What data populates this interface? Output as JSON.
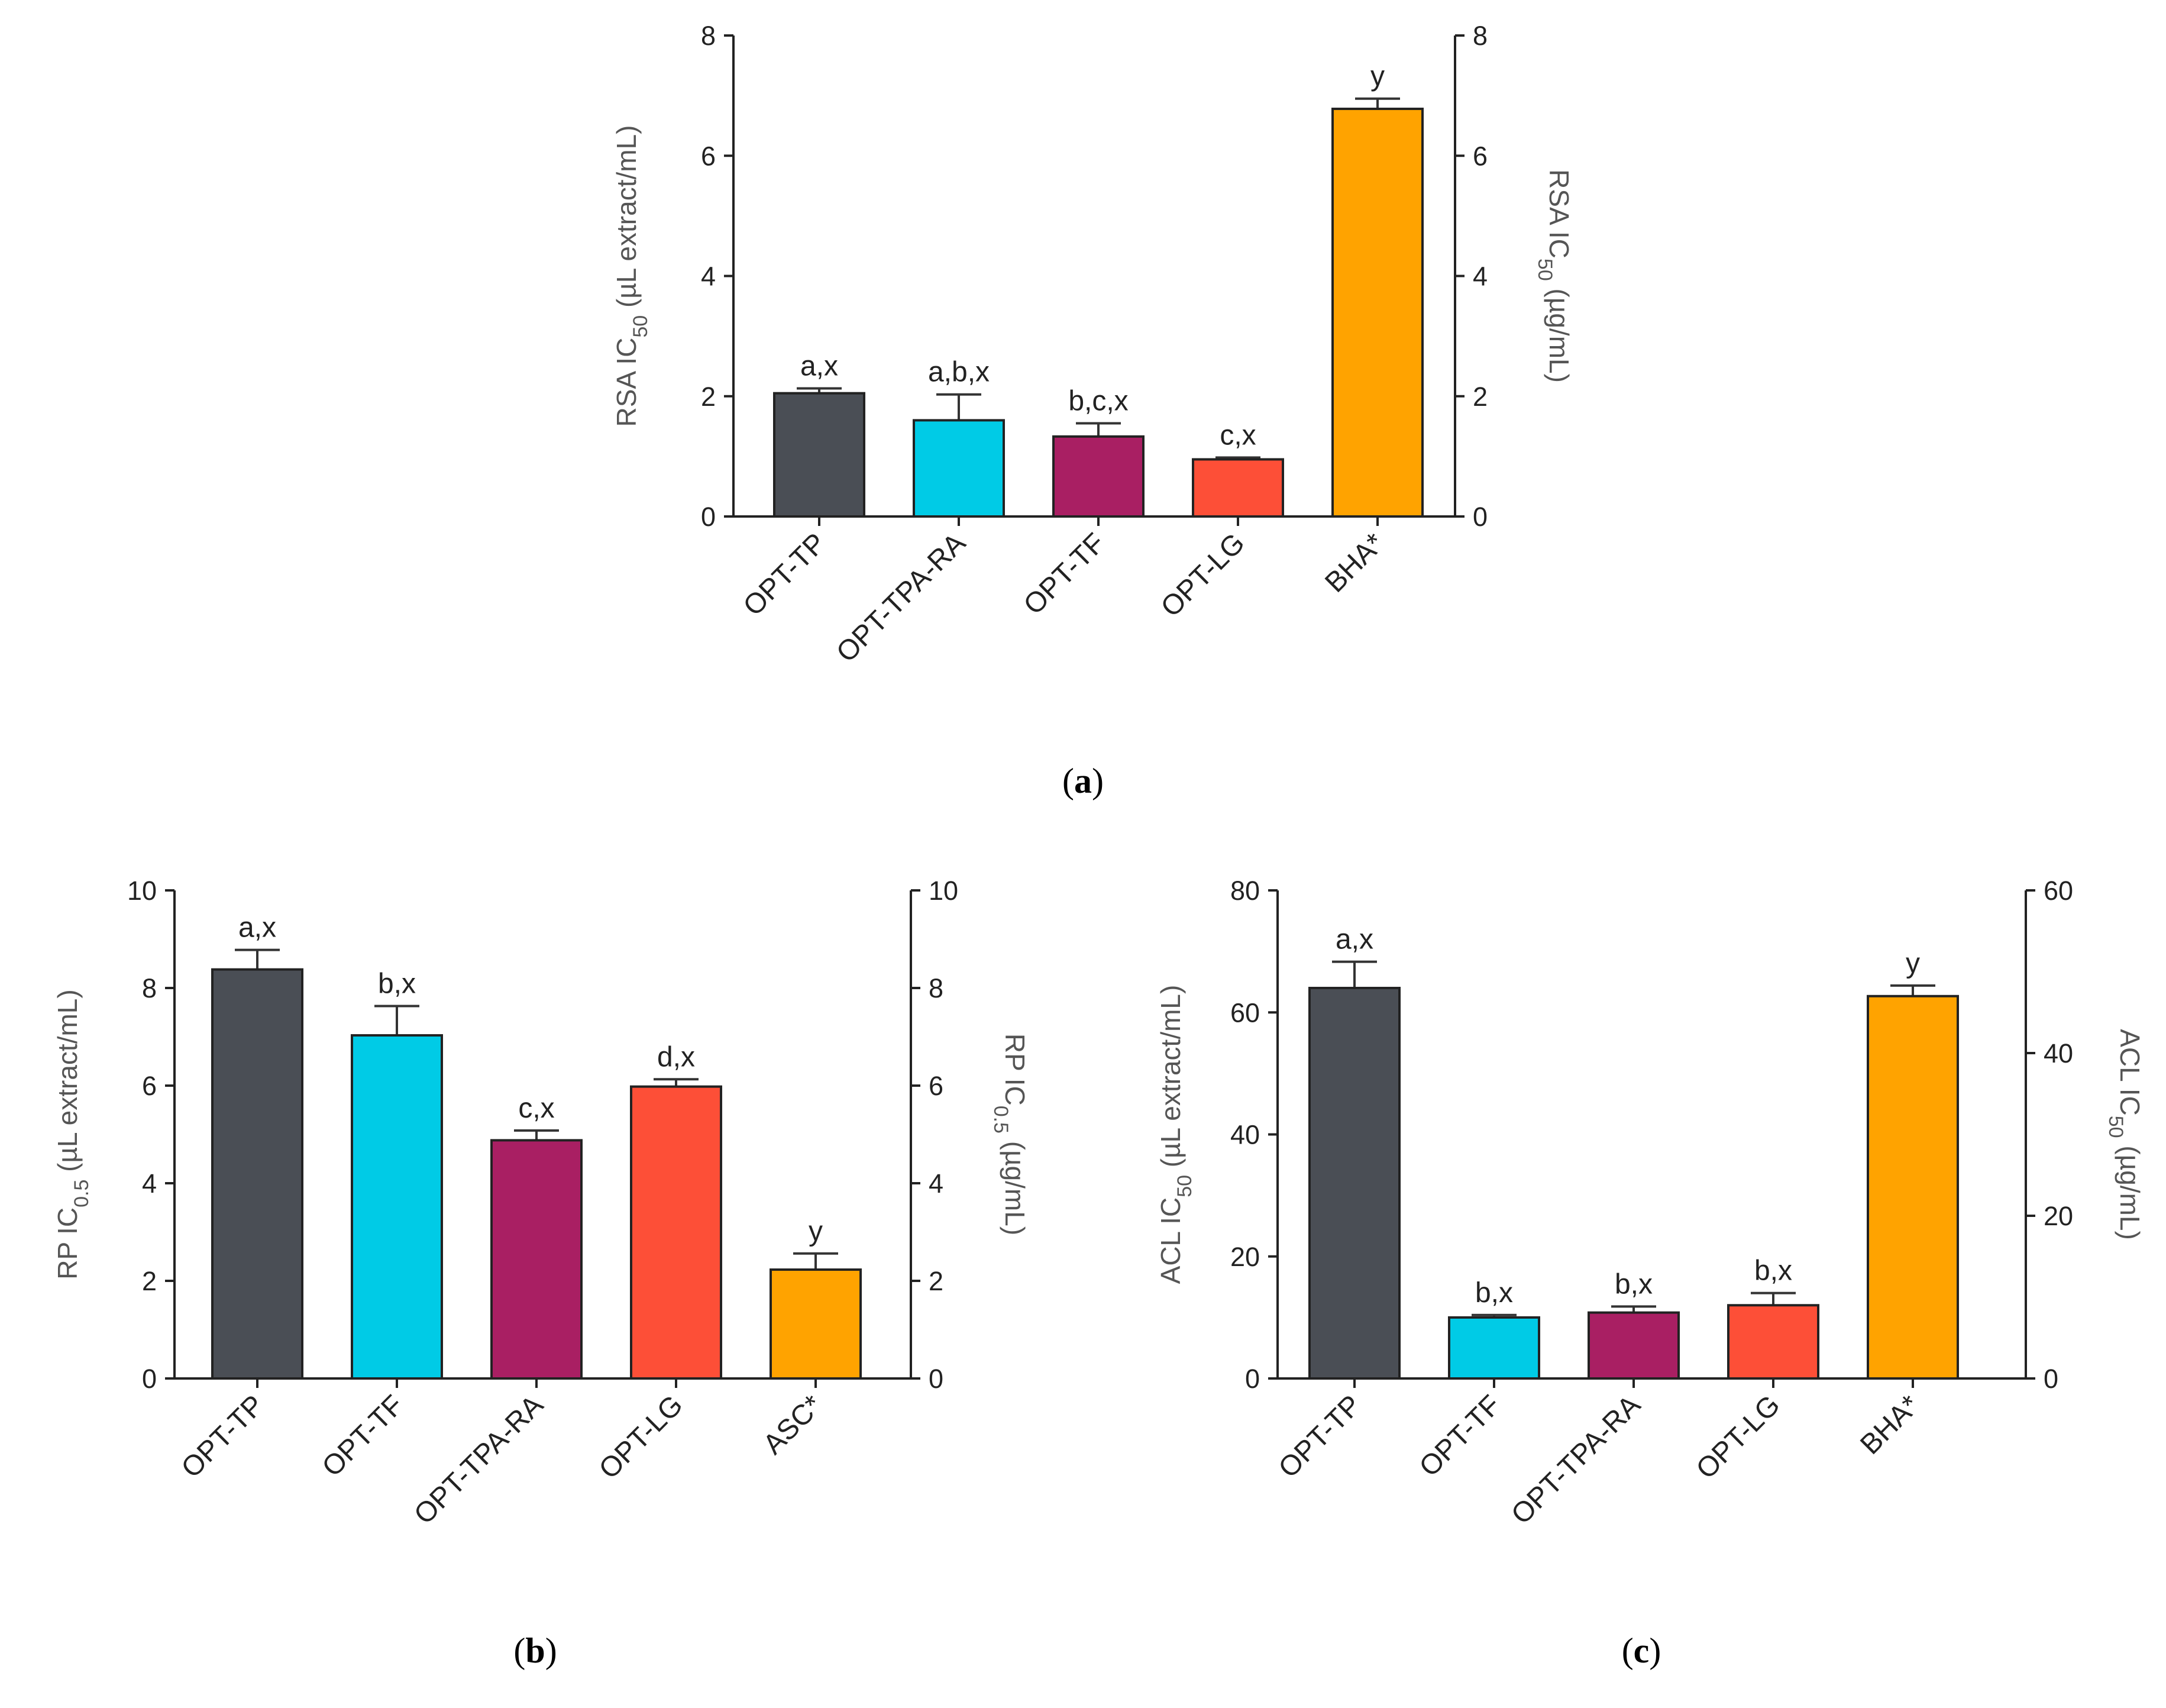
{
  "chart_data": [
    {
      "id": "a",
      "type": "bar",
      "panel_label": "a",
      "categories": [
        "OPT-TP",
        "OPT-TPA-RA",
        "OPT-TF",
        "OPT-LG",
        "BHA*"
      ],
      "values": [
        2.05,
        1.6,
        1.33,
        0.95,
        6.78
      ],
      "errors": [
        0.08,
        0.43,
        0.22,
        0.03,
        0.17
      ],
      "value_axis": [
        "left",
        "left",
        "left",
        "left",
        "right"
      ],
      "annotations": [
        "a,x",
        "a,b,x",
        "b,c,x",
        "c,x",
        "y"
      ],
      "colors": [
        "#4a4e55",
        "#00cbe6",
        "#a91f63",
        "#fd4f37",
        "#ffa300"
      ],
      "left_axis": {
        "label_prefix": "RSA  IC",
        "label_sub": "50",
        "label_suffix": " (µL extract/mL)",
        "ylim": [
          0,
          8
        ],
        "ticks": [
          0,
          2,
          4,
          6,
          8
        ]
      },
      "right_axis": {
        "label_prefix": "RSA  IC",
        "label_sub": "50",
        "label_suffix": " (µg/mL)",
        "ylim": [
          0,
          8
        ],
        "ticks": [
          0,
          2,
          4,
          6,
          8
        ]
      }
    },
    {
      "id": "b",
      "type": "bar",
      "panel_label": "b",
      "categories": [
        "OPT-TP",
        "OPT-TF",
        "OPT-TPA-RA",
        "OPT-LG",
        "ASC*"
      ],
      "values": [
        8.38,
        7.03,
        4.88,
        5.98,
        2.23
      ],
      "errors": [
        0.4,
        0.6,
        0.2,
        0.15,
        0.33
      ],
      "value_axis": [
        "left",
        "left",
        "left",
        "left",
        "right"
      ],
      "annotations": [
        "a,x",
        "b,x",
        "c,x",
        "d,x",
        "y"
      ],
      "colors": [
        "#4a4e55",
        "#00cbe6",
        "#a91f63",
        "#fd4f37",
        "#ffa300"
      ],
      "left_axis": {
        "label_prefix": "RP  IC",
        "label_sub": "0.5",
        "label_suffix": " (µL extract/mL)",
        "ylim": [
          0,
          10
        ],
        "ticks": [
          0,
          2,
          4,
          6,
          8,
          10
        ]
      },
      "right_axis": {
        "label_prefix": "RP  IC",
        "label_sub": "0.5",
        "label_suffix": " (µg/mL)",
        "ylim": [
          0,
          10
        ],
        "ticks": [
          0,
          2,
          4,
          6,
          8,
          10
        ]
      }
    },
    {
      "id": "c",
      "type": "bar",
      "panel_label": "c",
      "categories": [
        "OPT-TP",
        "OPT-TF",
        "OPT-TPA-RA",
        "OPT-LG",
        "BHA*"
      ],
      "values": [
        64,
        10,
        10.8,
        12,
        47
      ],
      "errors": [
        4.3,
        0.4,
        1.0,
        2.0,
        1.3
      ],
      "value_axis": [
        "left",
        "left",
        "left",
        "left",
        "right"
      ],
      "annotations": [
        "a,x",
        "b,x",
        "b,x",
        "b,x",
        "y"
      ],
      "colors": [
        "#4a4e55",
        "#00cbe6",
        "#a91f63",
        "#fd4f37",
        "#ffa300"
      ],
      "left_axis": {
        "label_prefix": "ACL  IC",
        "label_sub": "50",
        "label_suffix": " (µL extract/mL)",
        "ylim": [
          0,
          80
        ],
        "ticks": [
          0,
          20,
          40,
          60,
          80
        ]
      },
      "right_axis": {
        "label_prefix": "ACL  IC",
        "label_sub": "50",
        "label_suffix": " (µg/mL)",
        "ylim": [
          0,
          60
        ],
        "ticks": [
          0,
          20,
          40,
          60
        ]
      }
    }
  ]
}
